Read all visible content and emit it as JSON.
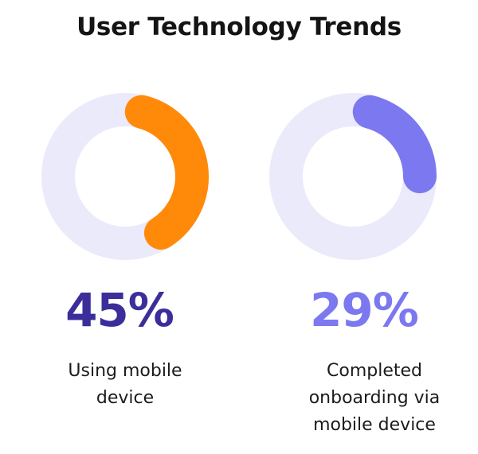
{
  "title": "User Technology Trends",
  "colors": {
    "track": "#ebeafb",
    "orange": "#ff8a0a",
    "periwinkle": "#7c78f0",
    "dark_purple": "#3b2e9a"
  },
  "chart_data": [
    {
      "type": "pie",
      "value": 45,
      "value_label": "45%",
      "label": "Using mobile device",
      "arc_color": "#ff8a0a",
      "value_color": "#3b2e9a"
    },
    {
      "type": "pie",
      "value": 29,
      "value_label": "29%",
      "label": "Completed onboarding via mobile device",
      "arc_color": "#7c78f0",
      "value_color": "#7c78f0"
    }
  ]
}
